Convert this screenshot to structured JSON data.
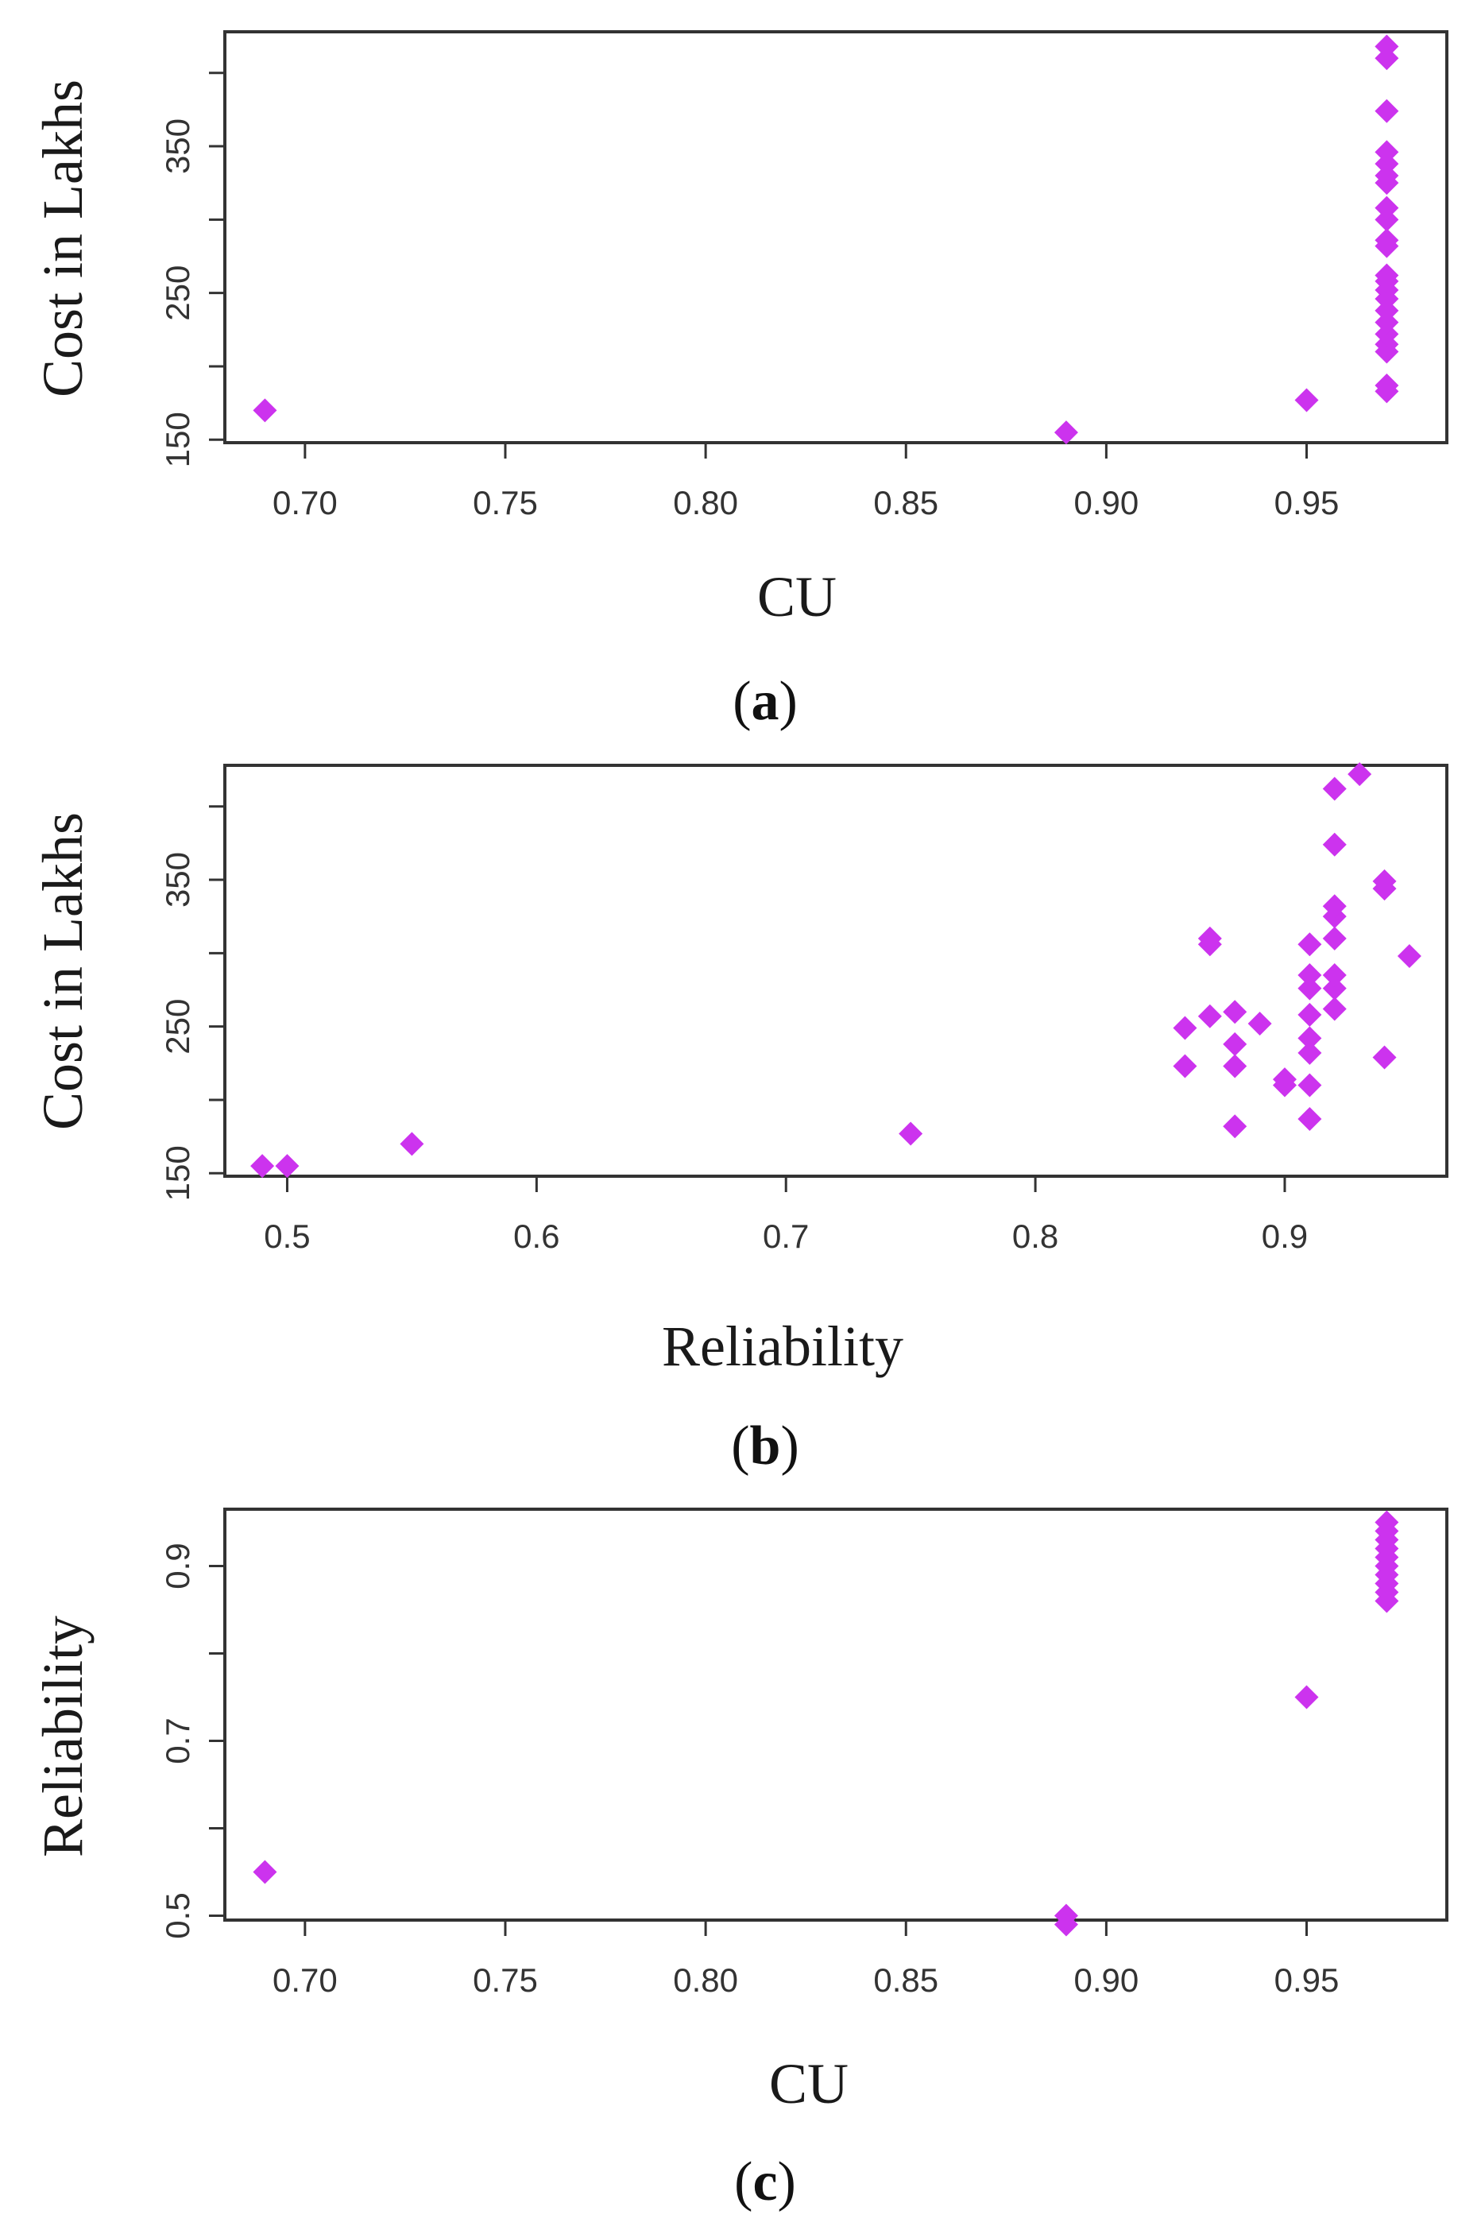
{
  "marker_color": "#cc33ee",
  "marker_shape": "diamond",
  "chart_data": [
    {
      "type": "scatter",
      "panel": "(a)",
      "caption_letter": "a",
      "xlabel": "CU",
      "ylabel": "Cost in Lakhs",
      "xlim": [
        0.68,
        0.985
      ],
      "ylim": [
        148,
        428
      ],
      "xticks": [
        0.7,
        0.75,
        0.8,
        0.85,
        0.9,
        0.95
      ],
      "xtick_labels": [
        "0.70",
        "0.75",
        "0.80",
        "0.85",
        "0.90",
        "0.95"
      ],
      "yticks": [
        150,
        200,
        250,
        300,
        350,
        400
      ],
      "ytick_labels": [
        "150",
        "",
        "250",
        "",
        "350",
        ""
      ],
      "points": [
        {
          "x": 0.69,
          "y": 170
        },
        {
          "x": 0.89,
          "y": 155
        },
        {
          "x": 0.95,
          "y": 177
        },
        {
          "x": 0.97,
          "y": 183
        },
        {
          "x": 0.97,
          "y": 187
        },
        {
          "x": 0.97,
          "y": 210
        },
        {
          "x": 0.97,
          "y": 215
        },
        {
          "x": 0.97,
          "y": 222
        },
        {
          "x": 0.97,
          "y": 230
        },
        {
          "x": 0.97,
          "y": 238
        },
        {
          "x": 0.97,
          "y": 246
        },
        {
          "x": 0.97,
          "y": 252
        },
        {
          "x": 0.97,
          "y": 258
        },
        {
          "x": 0.97,
          "y": 262
        },
        {
          "x": 0.97,
          "y": 282
        },
        {
          "x": 0.97,
          "y": 286
        },
        {
          "x": 0.97,
          "y": 300
        },
        {
          "x": 0.97,
          "y": 308
        },
        {
          "x": 0.97,
          "y": 325
        },
        {
          "x": 0.97,
          "y": 330
        },
        {
          "x": 0.97,
          "y": 338
        },
        {
          "x": 0.97,
          "y": 346
        },
        {
          "x": 0.97,
          "y": 374
        },
        {
          "x": 0.97,
          "y": 410
        },
        {
          "x": 0.97,
          "y": 418
        }
      ]
    },
    {
      "type": "scatter",
      "panel": "(b)",
      "caption_letter": "b",
      "xlabel": "Reliability",
      "ylabel": "Cost in Lakhs",
      "xlim": [
        0.475,
        0.965
      ],
      "ylim": [
        148,
        428
      ],
      "xticks": [
        0.5,
        0.6,
        0.7,
        0.8,
        0.9
      ],
      "xtick_labels": [
        "0.5",
        "0.6",
        "0.7",
        "0.8",
        "0.9"
      ],
      "yticks": [
        150,
        200,
        250,
        300,
        350,
        400
      ],
      "ytick_labels": [
        "150",
        "",
        "250",
        "",
        "350",
        ""
      ],
      "points": [
        {
          "x": 0.49,
          "y": 155
        },
        {
          "x": 0.5,
          "y": 155
        },
        {
          "x": 0.55,
          "y": 170
        },
        {
          "x": 0.75,
          "y": 177
        },
        {
          "x": 0.86,
          "y": 223
        },
        {
          "x": 0.86,
          "y": 249
        },
        {
          "x": 0.87,
          "y": 257
        },
        {
          "x": 0.87,
          "y": 306
        },
        {
          "x": 0.87,
          "y": 310
        },
        {
          "x": 0.88,
          "y": 182
        },
        {
          "x": 0.88,
          "y": 223
        },
        {
          "x": 0.88,
          "y": 238
        },
        {
          "x": 0.88,
          "y": 260
        },
        {
          "x": 0.89,
          "y": 252
        },
        {
          "x": 0.9,
          "y": 210
        },
        {
          "x": 0.9,
          "y": 214
        },
        {
          "x": 0.91,
          "y": 187
        },
        {
          "x": 0.91,
          "y": 210
        },
        {
          "x": 0.91,
          "y": 232
        },
        {
          "x": 0.91,
          "y": 242
        },
        {
          "x": 0.91,
          "y": 258
        },
        {
          "x": 0.91,
          "y": 276
        },
        {
          "x": 0.91,
          "y": 285
        },
        {
          "x": 0.91,
          "y": 306
        },
        {
          "x": 0.92,
          "y": 262
        },
        {
          "x": 0.92,
          "y": 276
        },
        {
          "x": 0.92,
          "y": 285
        },
        {
          "x": 0.92,
          "y": 310
        },
        {
          "x": 0.92,
          "y": 325
        },
        {
          "x": 0.92,
          "y": 332
        },
        {
          "x": 0.92,
          "y": 374
        },
        {
          "x": 0.92,
          "y": 412
        },
        {
          "x": 0.93,
          "y": 422
        },
        {
          "x": 0.94,
          "y": 229
        },
        {
          "x": 0.94,
          "y": 344
        },
        {
          "x": 0.94,
          "y": 349
        },
        {
          "x": 0.95,
          "y": 298
        }
      ]
    },
    {
      "type": "scatter",
      "panel": "(c)",
      "caption_letter": "c",
      "xlabel": "CU",
      "ylabel": "Reliability",
      "xlim": [
        0.68,
        0.985
      ],
      "ylim": [
        0.495,
        0.965
      ],
      "xticks": [
        0.7,
        0.75,
        0.8,
        0.85,
        0.9,
        0.95
      ],
      "xtick_labels": [
        "0.70",
        "0.75",
        "0.80",
        "0.85",
        "0.90",
        "0.95"
      ],
      "yticks": [
        0.5,
        0.6,
        0.7,
        0.8,
        0.9
      ],
      "ytick_labels": [
        "0.5",
        "",
        "0.7",
        "",
        "0.9"
      ],
      "points": [
        {
          "x": 0.69,
          "y": 0.55
        },
        {
          "x": 0.89,
          "y": 0.49
        },
        {
          "x": 0.89,
          "y": 0.5
        },
        {
          "x": 0.95,
          "y": 0.75
        },
        {
          "x": 0.97,
          "y": 0.86
        },
        {
          "x": 0.97,
          "y": 0.87
        },
        {
          "x": 0.97,
          "y": 0.88
        },
        {
          "x": 0.97,
          "y": 0.89
        },
        {
          "x": 0.97,
          "y": 0.9
        },
        {
          "x": 0.97,
          "y": 0.91
        },
        {
          "x": 0.97,
          "y": 0.92
        },
        {
          "x": 0.97,
          "y": 0.93
        },
        {
          "x": 0.97,
          "y": 0.94
        },
        {
          "x": 0.97,
          "y": 0.95
        }
      ]
    }
  ]
}
